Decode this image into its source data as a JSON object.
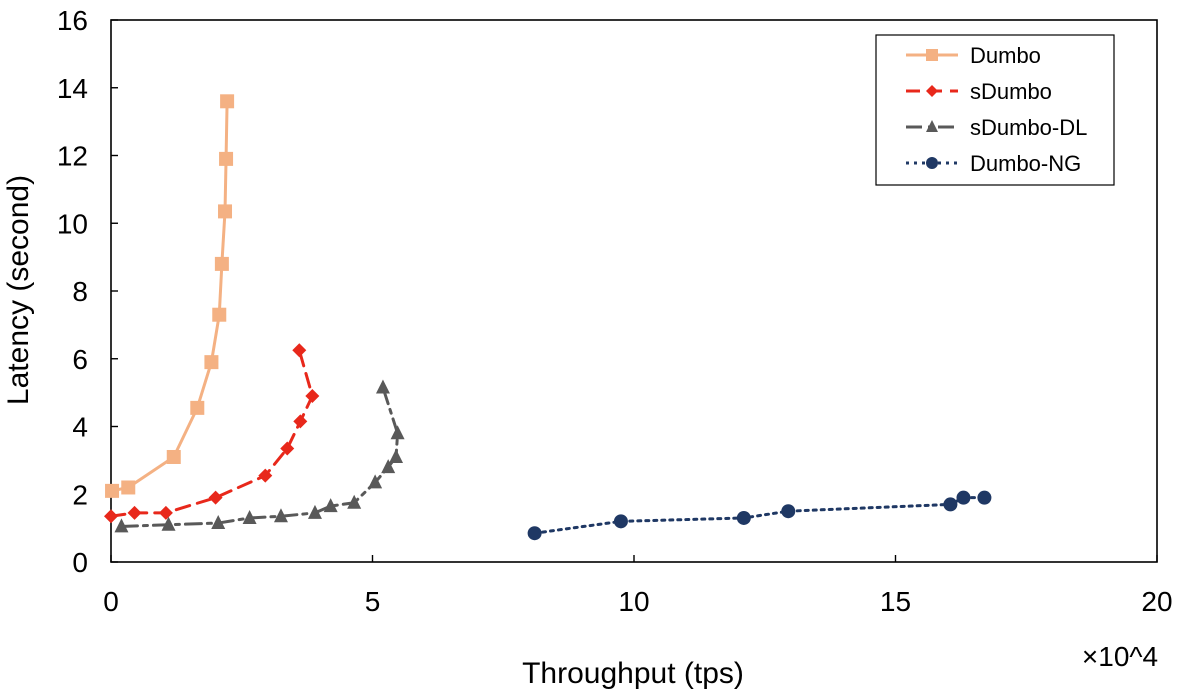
{
  "chart_data": {
    "type": "line",
    "xlabel": "Throughput (tps)",
    "ylabel": "Latency (second)",
    "x_multiplier_label": "×10^4",
    "xlim": [
      0,
      20
    ],
    "ylim": [
      0,
      16
    ],
    "xticks": [
      "0",
      "5",
      "10",
      "15",
      "20"
    ],
    "yticks": [
      "0",
      "2",
      "4",
      "6",
      "8",
      "10",
      "12",
      "14",
      "16"
    ],
    "legend_position": "top-right",
    "series": [
      {
        "name": "Dumbo",
        "color": "#f4b183",
        "dash": "solid",
        "marker": "square",
        "x": [
          0.02,
          0.33,
          1.2,
          1.65,
          1.92,
          2.07,
          2.12,
          2.18,
          2.2,
          2.22
        ],
        "y": [
          2.1,
          2.2,
          3.1,
          4.55,
          5.9,
          7.3,
          8.8,
          10.35,
          11.9,
          13.6
        ]
      },
      {
        "name": "sDumbo",
        "color": "#e8281b",
        "dash": "dash",
        "marker": "diamond",
        "x": [
          0.0,
          0.45,
          1.05,
          2.0,
          2.95,
          3.37,
          3.62,
          3.85,
          3.6
        ],
        "y": [
          1.35,
          1.45,
          1.45,
          1.9,
          2.55,
          3.35,
          4.15,
          4.9,
          6.25
        ]
      },
      {
        "name": "sDumbo-DL",
        "color": "#595959",
        "dash": "dashdot",
        "marker": "triangle",
        "x": [
          0.2,
          1.1,
          2.05,
          2.65,
          3.25,
          3.9,
          4.2,
          4.65,
          5.05,
          5.3,
          5.45,
          5.48,
          5.2
        ],
        "y": [
          1.05,
          1.1,
          1.15,
          1.3,
          1.35,
          1.45,
          1.65,
          1.75,
          2.35,
          2.8,
          3.1,
          3.8,
          5.15
        ]
      },
      {
        "name": "Dumbo-NG",
        "color": "#1f3864",
        "dash": "dot",
        "marker": "circle",
        "x": [
          8.1,
          9.75,
          12.1,
          12.95,
          16.05,
          16.3,
          16.7
        ],
        "y": [
          0.85,
          1.2,
          1.3,
          1.5,
          1.7,
          1.9,
          1.9
        ]
      }
    ]
  }
}
